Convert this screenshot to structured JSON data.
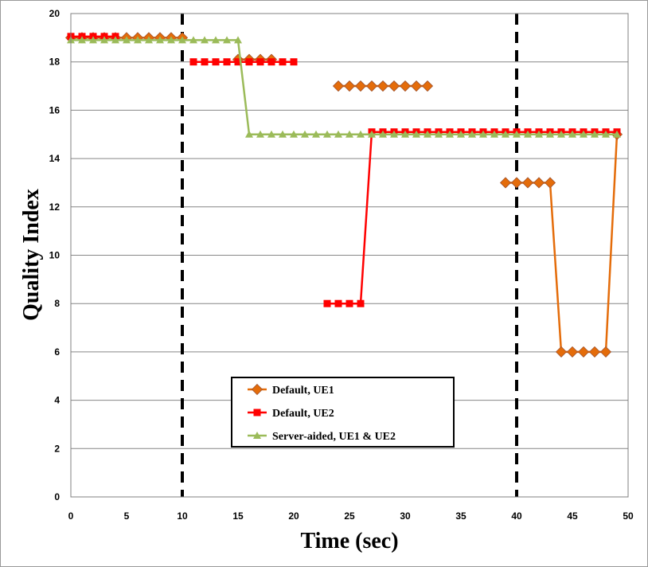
{
  "chart_data": {
    "type": "line",
    "xlabel": "Time (sec)",
    "ylabel": "Quality Index",
    "xlim": [
      0,
      50
    ],
    "ylim": [
      0,
      20
    ],
    "x_ticks": [
      "0",
      "5",
      "10",
      "15",
      "20",
      "25",
      "30",
      "35",
      "40",
      "45",
      "50"
    ],
    "y_ticks": [
      "0",
      "2",
      "4",
      "6",
      "8",
      "10",
      "12",
      "14",
      "16",
      "18",
      "20"
    ],
    "grid": "horizontal",
    "legend_position": "bottom-center",
    "vertical_markers": [
      10,
      40
    ],
    "series": [
      {
        "name": "Default, UE1",
        "color": "#E46C0A",
        "marker": "diamond",
        "segments": [
          [
            [
              0,
              19
            ],
            [
              1,
              19
            ],
            [
              2,
              19
            ],
            [
              3,
              19
            ],
            [
              4,
              19
            ],
            [
              5,
              19
            ],
            [
              6,
              19
            ],
            [
              7,
              19
            ],
            [
              8,
              19
            ],
            [
              9,
              19
            ],
            [
              10,
              19
            ]
          ],
          [
            [
              15,
              18.1
            ],
            [
              16,
              18.1
            ],
            [
              17,
              18.1
            ],
            [
              18,
              18.1
            ]
          ],
          [
            [
              24,
              17
            ],
            [
              25,
              17
            ],
            [
              26,
              17
            ],
            [
              27,
              17
            ],
            [
              28,
              17
            ],
            [
              29,
              17
            ],
            [
              30,
              17
            ],
            [
              31,
              17
            ],
            [
              32,
              17
            ]
          ],
          [
            [
              39,
              13
            ],
            [
              40,
              13
            ],
            [
              41,
              13
            ],
            [
              42,
              13
            ],
            [
              43,
              13
            ],
            [
              44,
              6
            ],
            [
              45,
              6
            ],
            [
              46,
              6
            ],
            [
              47,
              6
            ],
            [
              48,
              6
            ],
            [
              49,
              15
            ]
          ]
        ]
      },
      {
        "name": "Default, UE2",
        "color": "#FF0000",
        "marker": "square",
        "segments": [
          [
            [
              0,
              19.05
            ],
            [
              1,
              19.05
            ],
            [
              2,
              19.05
            ],
            [
              3,
              19.05
            ],
            [
              4,
              19.05
            ]
          ],
          [
            [
              11,
              18
            ],
            [
              12,
              18
            ],
            [
              13,
              18
            ],
            [
              14,
              18
            ],
            [
              15,
              18
            ],
            [
              16,
              18
            ],
            [
              17,
              18
            ],
            [
              18,
              18
            ],
            [
              19,
              18
            ],
            [
              20,
              18
            ]
          ],
          [
            [
              23,
              8
            ],
            [
              24,
              8
            ],
            [
              25,
              8
            ],
            [
              26,
              8
            ],
            [
              27,
              15.1
            ],
            [
              28,
              15.1
            ],
            [
              29,
              15.1
            ],
            [
              30,
              15.1
            ],
            [
              31,
              15.1
            ],
            [
              32,
              15.1
            ],
            [
              33,
              15.1
            ],
            [
              34,
              15.1
            ],
            [
              35,
              15.1
            ],
            [
              36,
              15.1
            ],
            [
              37,
              15.1
            ],
            [
              38,
              15.1
            ],
            [
              39,
              15.1
            ],
            [
              40,
              15.1
            ],
            [
              41,
              15.1
            ],
            [
              42,
              15.1
            ],
            [
              43,
              15.1
            ],
            [
              44,
              15.1
            ],
            [
              45,
              15.1
            ],
            [
              46,
              15.1
            ],
            [
              47,
              15.1
            ],
            [
              48,
              15.1
            ],
            [
              49,
              15.1
            ]
          ]
        ]
      },
      {
        "name": "Server-aided, UE1 & UE2",
        "color": "#9BBB59",
        "marker": "triangle",
        "segments": [
          [
            [
              0,
              18.9
            ],
            [
              1,
              18.9
            ],
            [
              2,
              18.9
            ],
            [
              3,
              18.9
            ],
            [
              4,
              18.9
            ],
            [
              5,
              18.9
            ],
            [
              6,
              18.9
            ],
            [
              7,
              18.9
            ],
            [
              8,
              18.9
            ],
            [
              9,
              18.9
            ],
            [
              10,
              18.9
            ],
            [
              11,
              18.9
            ],
            [
              12,
              18.9
            ],
            [
              13,
              18.9
            ],
            [
              14,
              18.9
            ],
            [
              15,
              18.9
            ],
            [
              16,
              15
            ],
            [
              17,
              15
            ],
            [
              18,
              15
            ],
            [
              19,
              15
            ],
            [
              20,
              15
            ],
            [
              21,
              15
            ],
            [
              22,
              15
            ],
            [
              23,
              15
            ],
            [
              24,
              15
            ],
            [
              25,
              15
            ],
            [
              26,
              15
            ],
            [
              27,
              15
            ],
            [
              28,
              15
            ],
            [
              29,
              15
            ],
            [
              30,
              15
            ],
            [
              31,
              15
            ],
            [
              32,
              15
            ],
            [
              33,
              15
            ],
            [
              34,
              15
            ],
            [
              35,
              15
            ],
            [
              36,
              15
            ],
            [
              37,
              15
            ],
            [
              38,
              15
            ],
            [
              39,
              15
            ],
            [
              40,
              15
            ],
            [
              41,
              15
            ],
            [
              42,
              15
            ],
            [
              43,
              15
            ],
            [
              44,
              15
            ],
            [
              45,
              15
            ],
            [
              46,
              15
            ],
            [
              47,
              15
            ],
            [
              48,
              15
            ],
            [
              49,
              15
            ]
          ]
        ]
      }
    ]
  }
}
